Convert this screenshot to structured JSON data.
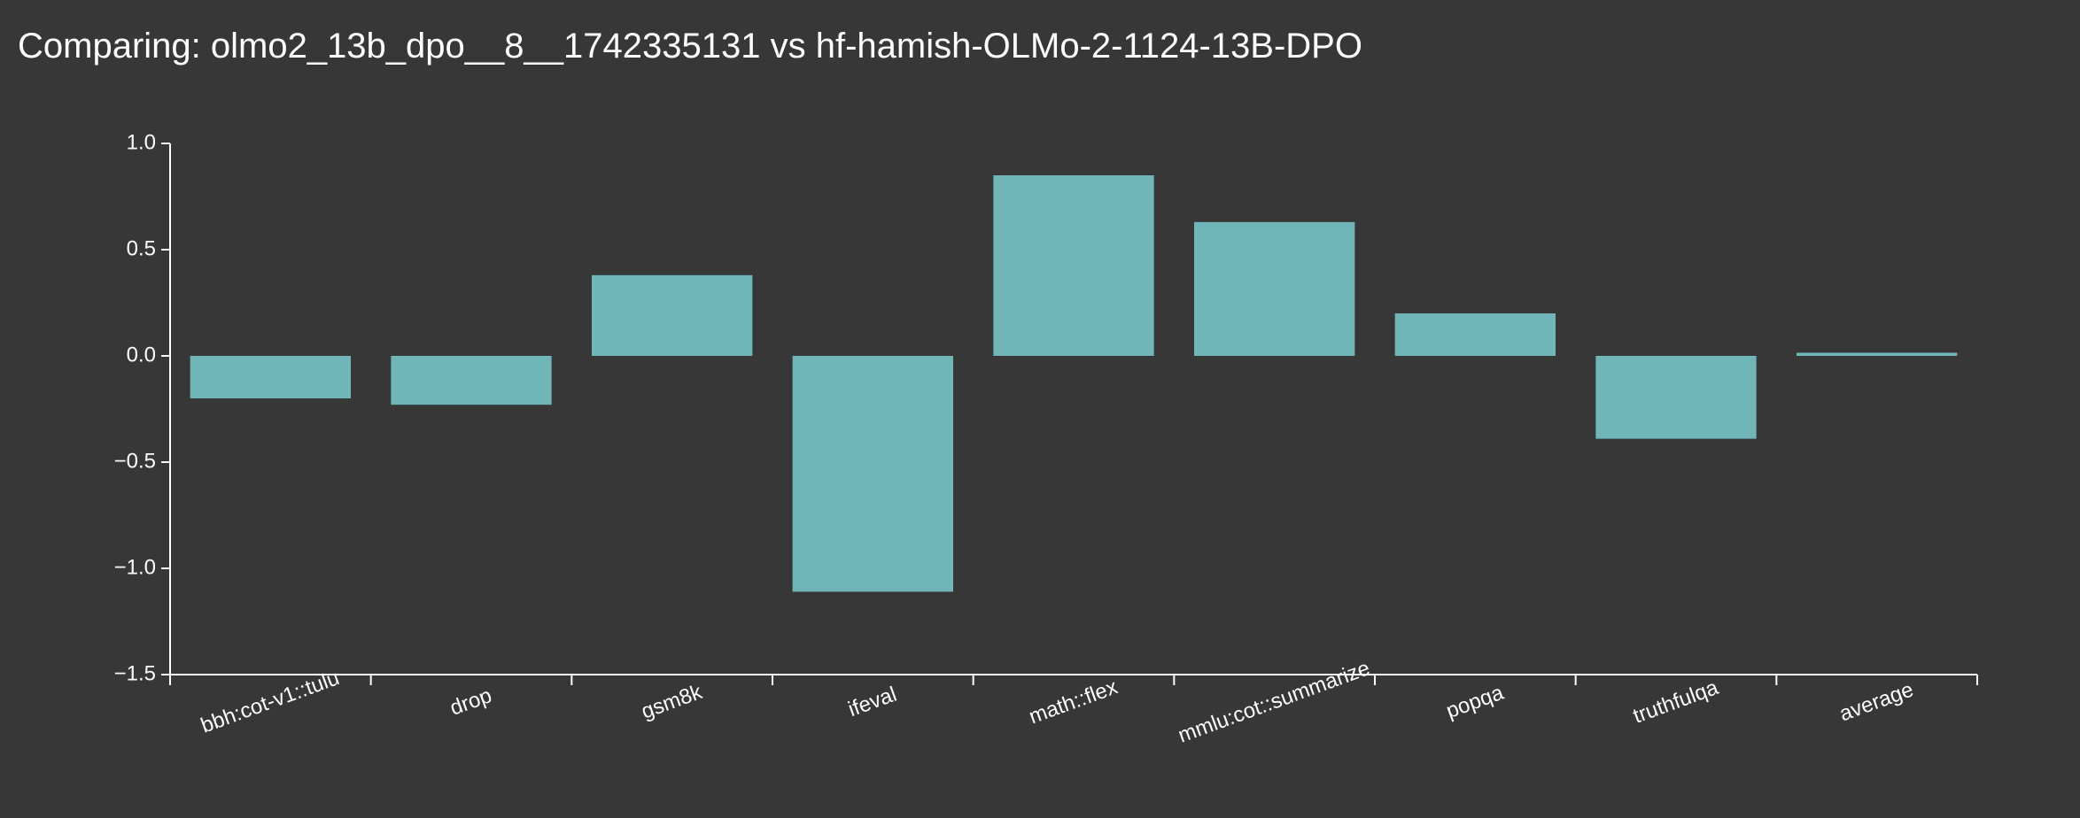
{
  "header": {
    "title": "Comparing: olmo2_13b_dpo__8__1742335131 vs hf-hamish-OLMo-2-1124-13B-DPO"
  },
  "chart_data": {
    "type": "bar",
    "title": "Comparing: olmo2_13b_dpo__8__1742335131 vs hf-hamish-OLMo-2-1124-13B-DPO",
    "xlabel": "",
    "ylabel": "",
    "categories": [
      "bbh:cot-v1::tulu",
      "drop",
      "gsm8k",
      "ifeval",
      "math::flex",
      "mmlu:cot::summarize",
      "popqa",
      "truthfulqa",
      "average"
    ],
    "values": [
      -0.2,
      -0.23,
      0.38,
      -1.11,
      0.85,
      0.63,
      0.2,
      -0.39,
      0.015
    ],
    "ylim": [
      -1.5,
      1.0
    ],
    "yticks": [
      "1.0",
      "0.5",
      "0.0",
      "−0.5",
      "−1.0",
      "−1.5"
    ],
    "bar_color": "#70b5b8",
    "grid": false,
    "legend": "none"
  }
}
